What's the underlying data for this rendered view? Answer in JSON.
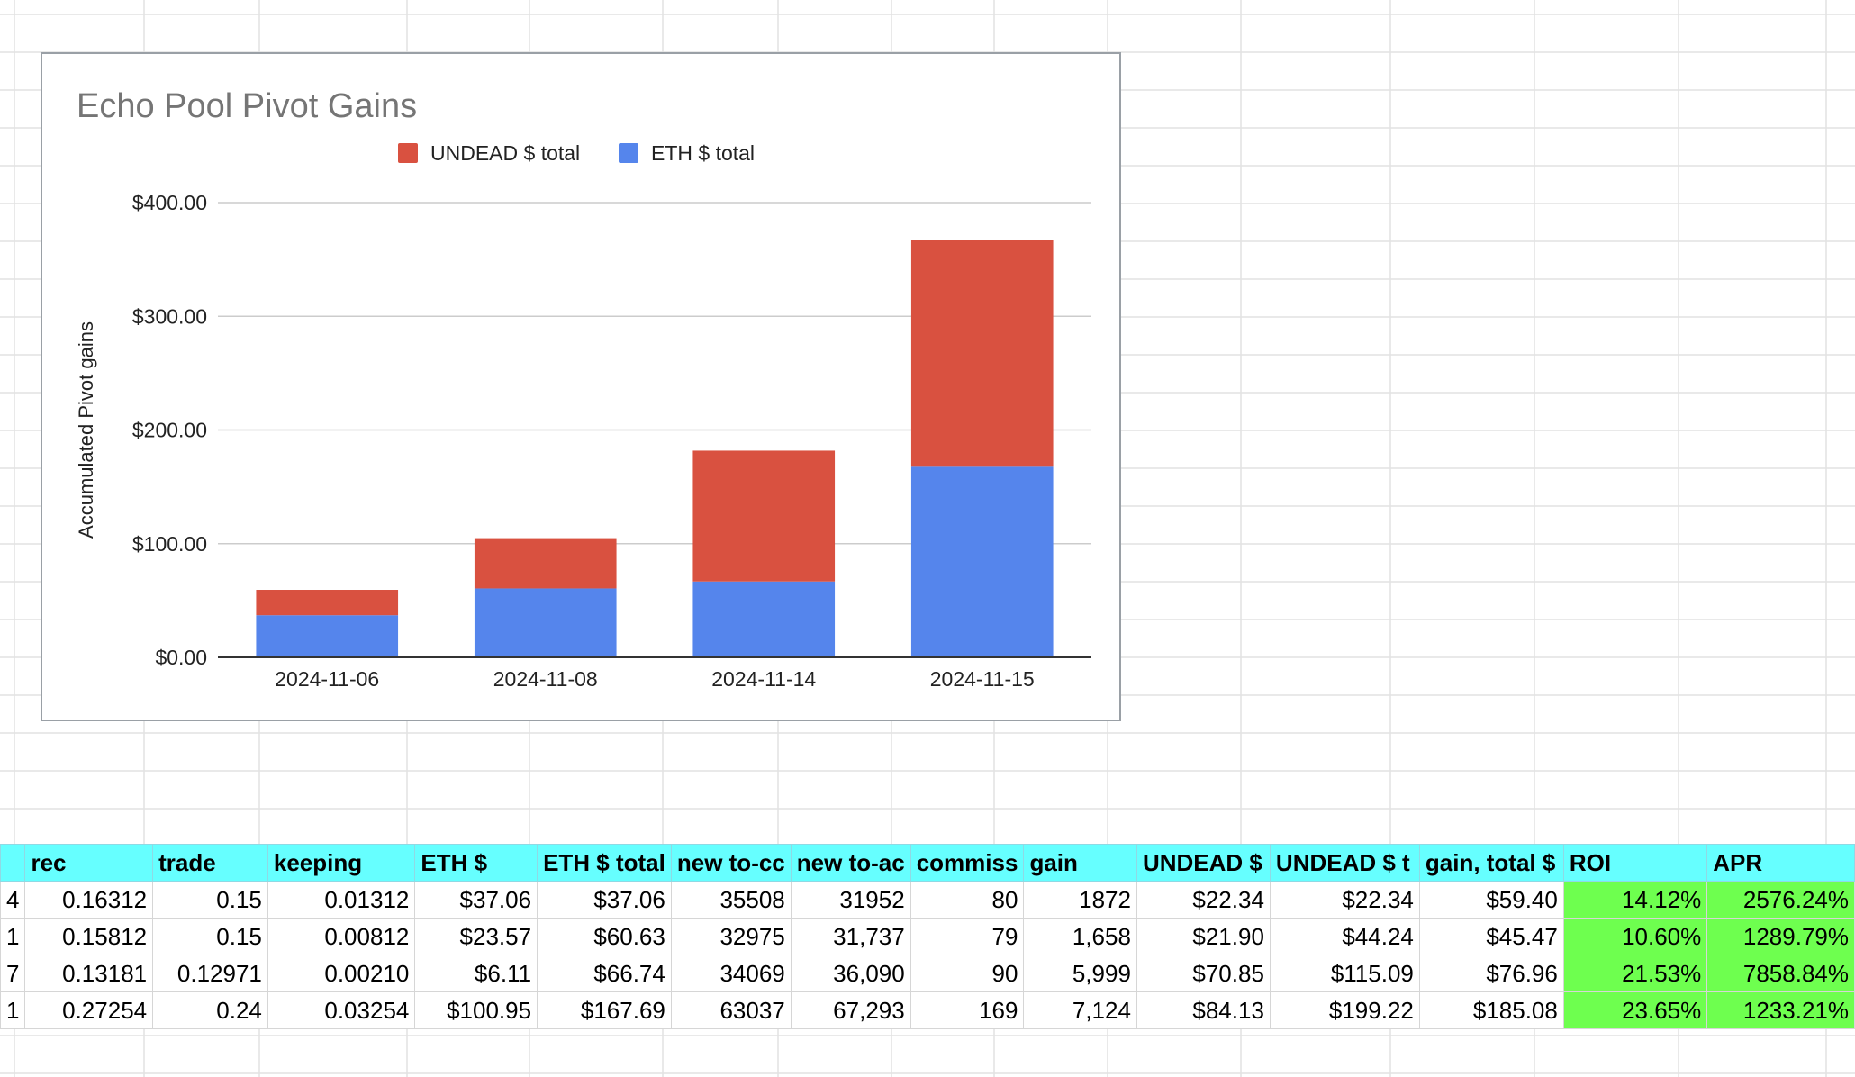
{
  "chart_data": {
    "type": "bar",
    "stacked": true,
    "title": "Echo Pool Pivot Gains",
    "xlabel": "",
    "ylabel": "Accumulated Pivot gains",
    "categories": [
      "2024-11-06",
      "2024-11-08",
      "2024-11-14",
      "2024-11-15"
    ],
    "series": [
      {
        "name": "ETH $ total",
        "color": "#5585ec",
        "values": [
          37.06,
          60.63,
          66.74,
          167.69
        ]
      },
      {
        "name": "UNDEAD $ total",
        "color": "#d95140",
        "values": [
          22.34,
          44.24,
          115.09,
          199.22
        ]
      }
    ],
    "legend_order": [
      1,
      0
    ],
    "legend_position": "top",
    "ylim": [
      0,
      400
    ],
    "yticks": [
      0,
      100,
      200,
      300,
      400
    ],
    "ytick_labels": [
      "$0.00",
      "$100.00",
      "$200.00",
      "$300.00",
      "$400.00"
    ],
    "grid": true
  },
  "table": {
    "headers": [
      "",
      "rec",
      "trade",
      "keeping",
      "ETH $",
      "ETH $ total",
      "new to-cc",
      "new to-ac",
      "commiss",
      "gain",
      "UNDEAD $",
      "UNDEAD $ t",
      "gain, total $",
      "ROI",
      "APR"
    ],
    "rows": [
      [
        "4",
        "0.16312",
        "0.15",
        "0.01312",
        "$37.06",
        "$37.06",
        "35508",
        "31952",
        "80",
        "1872",
        "$22.34",
        "$22.34",
        "$59.40",
        "14.12%",
        "2576.24%"
      ],
      [
        "1",
        "0.15812",
        "0.15",
        "0.00812",
        "$23.57",
        "$60.63",
        "32975",
        "31,737",
        "79",
        "1,658",
        "$21.90",
        "$44.24",
        "$45.47",
        "10.60%",
        "1289.79%"
      ],
      [
        "7",
        "0.13181",
        "0.12971",
        "0.00210",
        "$6.11",
        "$66.74",
        "34069",
        "36,090",
        "90",
        "5,999",
        "$70.85",
        "$115.09",
        "$76.96",
        "21.53%",
        "7858.84%"
      ],
      [
        "1",
        "0.27254",
        "0.24",
        "0.03254",
        "$100.95",
        "$167.69",
        "63037",
        "67,293",
        "169",
        "7,124",
        "$84.13",
        "$199.22",
        "$185.08",
        "23.65%",
        "1233.21%"
      ]
    ],
    "highlight_color": "#6eff4f",
    "header_color": "#66ffff"
  }
}
